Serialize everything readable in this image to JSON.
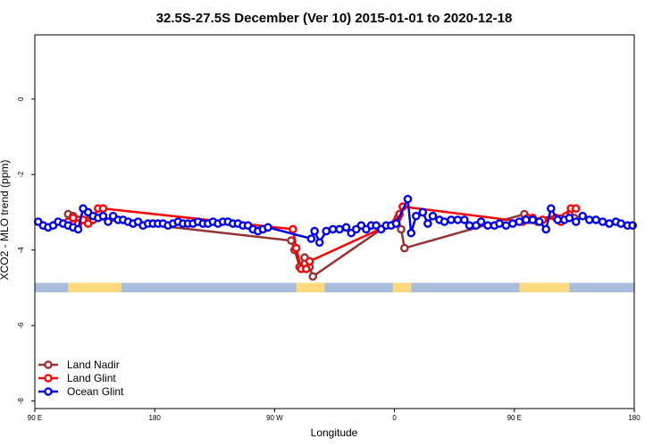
{
  "chart_data": {
    "type": "line",
    "title": "32.5S-27.5S December (Ver 10)   2015-01-01 to 2020-12-18",
    "xlabel": "Longitude",
    "ylabel": "XCO2 - MLO trend (ppm)",
    "xlim": [
      90,
      450
    ],
    "ylim": [
      -8.2,
      1.7
    ],
    "x_ticks": [
      {
        "value": 90,
        "label": "90 E"
      },
      {
        "value": 162,
        "label": "180"
      },
      {
        "value": 234,
        "label": "90 W"
      },
      {
        "value": 306,
        "label": "0"
      },
      {
        "value": 378,
        "label": "90 E"
      },
      {
        "value": 450,
        "label": "180"
      }
    ],
    "y_ticks": [
      {
        "value": 0,
        "label": "0"
      },
      {
        "value": -2,
        "label": "-2"
      },
      {
        "value": -4,
        "label": "-4"
      },
      {
        "value": -6,
        "label": "-6"
      },
      {
        "value": -8,
        "label": "-8"
      }
    ],
    "land_band": {
      "y_top": -4.87,
      "y_bottom": -5.12,
      "ocean_color": "#a9bcdc",
      "land_color": "#ffd97d",
      "land_ranges": [
        [
          110,
          142
        ],
        [
          247,
          264
        ],
        [
          305,
          316
        ],
        [
          381,
          411
        ]
      ]
    },
    "legend": {
      "position": "bottom-left",
      "entries": [
        {
          "name": "Land Nadir",
          "color": "#983333"
        },
        {
          "name": "Land Glint",
          "color": "#ff0000"
        },
        {
          "name": "Ocean Glint",
          "color": "#0000ee"
        }
      ]
    },
    "series": [
      {
        "name": "Ocean Glint",
        "color": "#0000ee",
        "points": [
          [
            92,
            -3.25
          ],
          [
            95,
            -3.35
          ],
          [
            98,
            -3.4
          ],
          [
            101,
            -3.35
          ],
          [
            104,
            -3.25
          ],
          [
            107,
            -3.3
          ],
          [
            110,
            -3.35
          ],
          [
            113,
            -3.4
          ],
          [
            116,
            -3.45
          ],
          [
            119,
            -2.9
          ],
          [
            122,
            -3.0
          ],
          [
            125,
            -3.1
          ],
          [
            128,
            -3.15
          ],
          [
            131,
            -3.1
          ],
          [
            134,
            -3.25
          ],
          [
            137,
            -3.1
          ],
          [
            140,
            -3.2
          ],
          [
            143,
            -3.2
          ],
          [
            146,
            -3.25
          ],
          [
            149,
            -3.3
          ],
          [
            152,
            -3.25
          ],
          [
            155,
            -3.35
          ],
          [
            158,
            -3.3
          ],
          [
            161,
            -3.3
          ],
          [
            164,
            -3.3
          ],
          [
            167,
            -3.3
          ],
          [
            170,
            -3.35
          ],
          [
            173,
            -3.3
          ],
          [
            176,
            -3.25
          ],
          [
            179,
            -3.3
          ],
          [
            182,
            -3.3
          ],
          [
            185,
            -3.3
          ],
          [
            188,
            -3.25
          ],
          [
            191,
            -3.3
          ],
          [
            194,
            -3.3
          ],
          [
            197,
            -3.25
          ],
          [
            200,
            -3.3
          ],
          [
            203,
            -3.25
          ],
          [
            206,
            -3.25
          ],
          [
            209,
            -3.3
          ],
          [
            212,
            -3.3
          ],
          [
            215,
            -3.35
          ],
          [
            218,
            -3.35
          ],
          [
            221,
            -3.45
          ],
          [
            224,
            -3.5
          ],
          [
            227,
            -3.45
          ],
          [
            230,
            -3.4
          ],
          [
            256,
            -3.7
          ],
          [
            258,
            -3.5
          ],
          [
            261,
            -3.8
          ],
          [
            265,
            -3.5
          ],
          [
            269,
            -3.45
          ],
          [
            273,
            -3.45
          ],
          [
            277,
            -3.4
          ],
          [
            280,
            -3.55
          ],
          [
            283,
            -3.45
          ],
          [
            286,
            -3.35
          ],
          [
            289,
            -3.45
          ],
          [
            292,
            -3.35
          ],
          [
            295,
            -3.35
          ],
          [
            298,
            -3.45
          ],
          [
            301,
            -3.35
          ],
          [
            304,
            -3.35
          ],
          [
            307,
            -3.3
          ],
          [
            314,
            -2.65
          ],
          [
            316,
            -3.55
          ],
          [
            319,
            -3.1
          ],
          [
            323,
            -3.0
          ],
          [
            326,
            -3.3
          ],
          [
            329,
            -3.1
          ],
          [
            333,
            -3.2
          ],
          [
            336,
            -3.25
          ],
          [
            340,
            -3.2
          ],
          [
            344,
            -3.2
          ],
          [
            348,
            -3.2
          ],
          [
            351,
            -3.35
          ],
          [
            355,
            -3.35
          ],
          [
            358,
            -3.25
          ],
          [
            362,
            -3.35
          ],
          [
            366,
            -3.35
          ],
          [
            369,
            -3.3
          ],
          [
            373,
            -3.35
          ],
          [
            377,
            -3.3
          ],
          [
            381,
            -3.25
          ],
          [
            385,
            -3.2
          ],
          [
            389,
            -3.2
          ],
          [
            393,
            -3.25
          ],
          [
            397,
            -3.45
          ],
          [
            400,
            -2.9
          ],
          [
            404,
            -3.2
          ],
          [
            408,
            -3.2
          ],
          [
            411,
            -3.15
          ],
          [
            415,
            -3.25
          ],
          [
            419,
            -3.1
          ],
          [
            423,
            -3.2
          ],
          [
            427,
            -3.2
          ],
          [
            431,
            -3.25
          ],
          [
            435,
            -3.3
          ],
          [
            439,
            -3.25
          ],
          [
            442,
            -3.3
          ],
          [
            446,
            -3.35
          ],
          [
            449,
            -3.35
          ]
        ]
      },
      {
        "name": "Land Glint",
        "color": "#ff0000",
        "points": [
          [
            110,
            -3.25
          ],
          [
            113,
            -3.15
          ],
          [
            116,
            -3.3
          ],
          [
            119,
            -3.2
          ],
          [
            122,
            -3.3
          ],
          [
            125,
            -3.2
          ],
          [
            128,
            -2.9
          ],
          [
            131,
            -2.9
          ],
          [
            245,
            -3.45
          ],
          [
            247,
            -3.95
          ],
          [
            250,
            -4.5
          ],
          [
            253,
            -4.5
          ],
          [
            255,
            -4.3
          ],
          [
            307,
            -3.25
          ],
          [
            309,
            -3.05
          ],
          [
            311,
            -2.85
          ],
          [
            383,
            -3.25
          ],
          [
            386,
            -3.15
          ],
          [
            389,
            -3.15
          ],
          [
            392,
            -3.25
          ],
          [
            395,
            -3.2
          ],
          [
            403,
            -3.15
          ],
          [
            406,
            -3.25
          ],
          [
            409,
            -3.1
          ],
          [
            412,
            -2.9
          ],
          [
            415,
            -2.9
          ]
        ]
      },
      {
        "name": "Land Nadir",
        "color": "#983333",
        "points": [
          [
            110,
            -3.05
          ],
          [
            113,
            -3.1
          ],
          [
            244,
            -3.75
          ],
          [
            246,
            -4.0
          ],
          [
            249,
            -4.45
          ],
          [
            252,
            -4.2
          ],
          [
            255,
            -4.45
          ],
          [
            257,
            -4.7
          ],
          [
            308,
            -3.15
          ],
          [
            310,
            -3.45
          ],
          [
            312,
            -3.95
          ],
          [
            384,
            -3.05
          ],
          [
            387,
            -3.2
          ],
          [
            411,
            -3.05
          ],
          [
            414,
            -3.15
          ]
        ]
      }
    ]
  }
}
